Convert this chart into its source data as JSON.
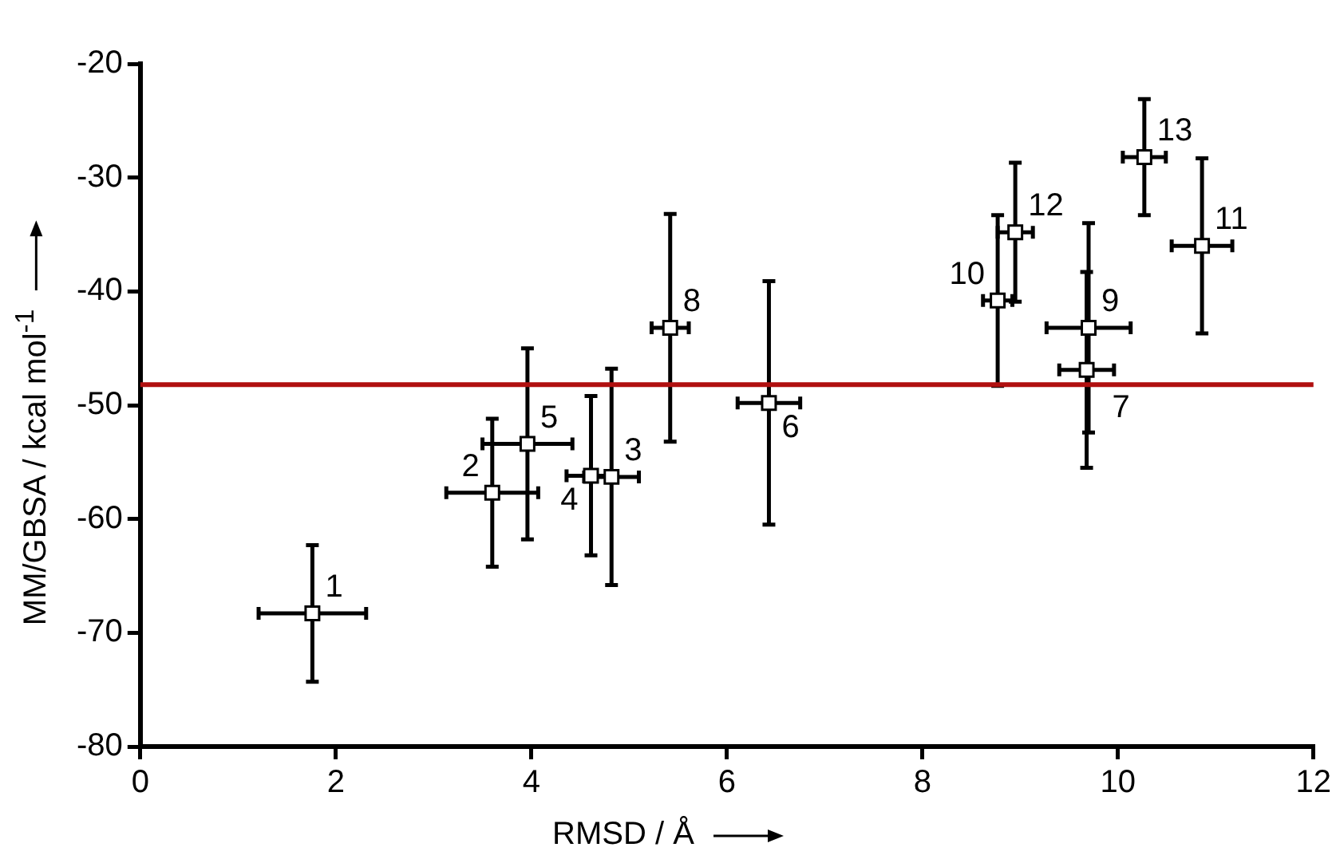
{
  "chart_data": {
    "type": "scatter",
    "xlabel": "RMSD / Å",
    "ylabel": "MM/GBSA / kcal mol$^{-1}$",
    "marker": "square",
    "grid": false,
    "legend": false,
    "xlim": [
      0,
      12
    ],
    "xticks": [
      0,
      2,
      4,
      6,
      8,
      10,
      12
    ],
    "ylim": [
      -80,
      -20
    ],
    "yticks": [
      -80,
      -70,
      -60,
      -50,
      -40,
      -30,
      -20
    ],
    "series": [
      {
        "color": "#000000",
        "x": [
          1.76,
          3.6,
          4.82,
          4.61,
          3.96,
          6.43,
          9.68,
          5.42,
          9.7,
          8.77,
          10.86,
          8.95,
          10.27
        ],
        "values": [
          -68.3,
          -57.7,
          -56.3,
          -56.2,
          -53.4,
          -49.8,
          -46.9,
          -43.2,
          -43.2,
          -40.8,
          -36.0,
          -34.8,
          -28.2
        ],
        "errors": [
          6,
          6.5,
          9.5,
          7,
          8.4,
          10.7,
          8.6,
          10,
          9.2,
          7.5,
          7.7,
          6.1,
          5.1
        ],
        "xerrors": [
          0.55,
          0.47,
          0.28,
          0.25,
          0.46,
          0.32,
          0.28,
          0.19,
          0.43,
          0.15,
          0.31,
          0.18,
          0.22
        ]
      }
    ],
    "ref_lines": [
      {
        "axis": "y",
        "value": -48.2,
        "color": "#b01010",
        "line_style": "solid"
      }
    ],
    "annotations": [
      {
        "text": "1",
        "x": 1.76,
        "y": -68.3
      },
      {
        "text": "2",
        "x": 3.6,
        "y": -57.7
      },
      {
        "text": "3",
        "x": 4.82,
        "y": -56.3
      },
      {
        "text": "4",
        "x": 4.61,
        "y": -56.2
      },
      {
        "text": "5",
        "x": 3.96,
        "y": -53.4
      },
      {
        "text": "6",
        "x": 6.43,
        "y": -49.8
      },
      {
        "text": "7",
        "x": 9.68,
        "y": -46.9
      },
      {
        "text": "8",
        "x": 5.42,
        "y": -43.2
      },
      {
        "text": "9",
        "x": 9.7,
        "y": -43.2
      },
      {
        "text": "10",
        "x": 8.77,
        "y": -40.8
      },
      {
        "text": "11",
        "x": 10.86,
        "y": -36.0
      },
      {
        "text": "12",
        "x": 8.95,
        "y": -34.8
      },
      {
        "text": "13",
        "x": 10.27,
        "y": -28.2
      }
    ]
  }
}
